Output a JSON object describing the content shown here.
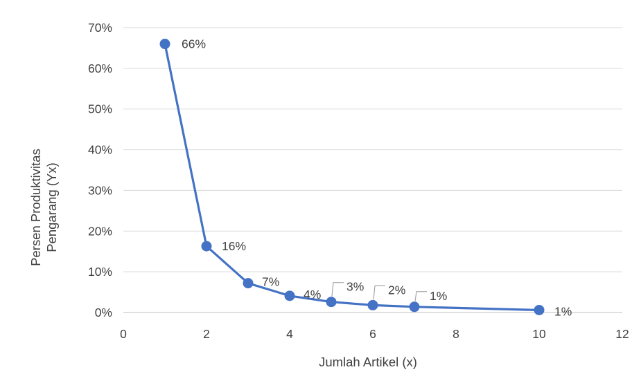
{
  "chart_data": {
    "type": "scatter",
    "title": "",
    "xlabel": "Jumlah Artikel (x)",
    "ylabel_lines": [
      "Persen  Produktivitas",
      "Pengarang (Yx)"
    ],
    "xlim": [
      0,
      12
    ],
    "ylim": [
      0,
      70
    ],
    "x_ticks": [
      0,
      2,
      4,
      6,
      8,
      10,
      12
    ],
    "y_ticks": [
      0,
      10,
      20,
      30,
      40,
      50,
      60,
      70
    ],
    "y_tick_suffix": "%",
    "grid": "horizontal",
    "legend": "none",
    "line_color": "#4472C4",
    "series": [
      {
        "x": [
          1,
          2,
          3,
          4,
          5,
          6,
          7,
          10
        ],
        "y": [
          66,
          16.3,
          7.2,
          4.1,
          2.6,
          1.8,
          1.4,
          0.6
        ],
        "labels": [
          "66%",
          "16%",
          "7%",
          "4%",
          "3%",
          "2%",
          "1%",
          "1%"
        ]
      }
    ]
  }
}
